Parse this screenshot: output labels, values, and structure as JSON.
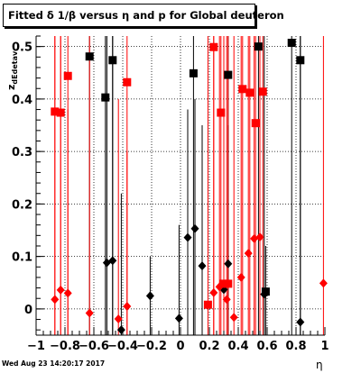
{
  "title": "Fitted δ 1/β versus η and p for Global deuteron",
  "footer_stamp": "Wed Aug 23 14:20:17 2017",
  "chart_data": {
    "type": "scatter",
    "xlabel": "η",
    "ylabel_main": "z",
    "ylabel_sub": "dEdetav",
    "xlim": [
      -1,
      1
    ],
    "ylim": [
      -0.05,
      0.52
    ],
    "x_ticks": [
      -1,
      -0.8,
      -0.6,
      -0.4,
      -0.2,
      0,
      0.2,
      0.4,
      0.6,
      0.8,
      1
    ],
    "x_tick_labels": [
      "−1",
      "−0.8",
      "−0.6",
      "−0.4",
      "−0.2",
      "0",
      "0.2",
      "0.4",
      "0.6",
      "0.8",
      "1"
    ],
    "y_ticks": [
      0,
      0.1,
      0.2,
      0.3,
      0.4,
      0.5
    ],
    "y_tick_labels": [
      "0",
      "0.1",
      "0.2",
      "0.3",
      "0.4",
      "0.5"
    ],
    "grid": true,
    "colors": {
      "black": "#000000",
      "red": "#ff0000"
    },
    "series": [
      {
        "color": "black",
        "marker": "diamond",
        "points": [
          {
            "x": -0.51,
            "y": 0.088,
            "lo": -0.05,
            "hi": 0.52
          },
          {
            "x": -0.47,
            "y": 0.092,
            "lo": -0.05,
            "hi": 0.52
          },
          {
            "x": -0.41,
            "y": -0.04,
            "lo": -0.05,
            "hi": 0.22
          },
          {
            "x": -0.21,
            "y": 0.025,
            "lo": -0.05,
            "hi": 0.1
          },
          {
            "x": -0.01,
            "y": -0.018,
            "lo": -0.05,
            "hi": 0.16
          },
          {
            "x": 0.05,
            "y": 0.136,
            "lo": -0.05,
            "hi": 0.38
          },
          {
            "x": 0.1,
            "y": 0.153,
            "lo": -0.05,
            "hi": 0.4
          },
          {
            "x": 0.15,
            "y": 0.082,
            "lo": -0.05,
            "hi": 0.35
          },
          {
            "x": 0.3,
            "y": 0.037,
            "lo": -0.05,
            "hi": 0.29
          },
          {
            "x": 0.33,
            "y": 0.086,
            "lo": -0.05,
            "hi": 0.35
          },
          {
            "x": 0.58,
            "y": 0.028,
            "lo": -0.05,
            "hi": 0.52
          },
          {
            "x": 0.83,
            "y": -0.025,
            "lo": -0.05,
            "hi": 0.52
          }
        ]
      },
      {
        "color": "black",
        "marker": "square",
        "points": [
          {
            "x": -0.63,
            "y": 0.481,
            "lo": -0.05,
            "hi": 0.52
          },
          {
            "x": -0.52,
            "y": 0.403,
            "lo": -0.05,
            "hi": 0.52
          },
          {
            "x": -0.47,
            "y": 0.474,
            "lo": -0.05,
            "hi": 0.52
          },
          {
            "x": 0.09,
            "y": 0.449,
            "lo": -0.05,
            "hi": 0.52
          },
          {
            "x": 0.33,
            "y": 0.446,
            "lo": -0.05,
            "hi": 0.52
          },
          {
            "x": 0.54,
            "y": 0.5,
            "lo": -0.05,
            "hi": 0.52
          },
          {
            "x": 0.59,
            "y": 0.033,
            "lo": -0.05,
            "hi": 0.12
          },
          {
            "x": 0.77,
            "y": 0.507,
            "lo": -0.05,
            "hi": 0.52
          },
          {
            "x": 0.83,
            "y": 0.474,
            "lo": -0.05,
            "hi": 0.52
          }
        ]
      },
      {
        "color": "red",
        "marker": "diamond",
        "points": [
          {
            "x": -0.87,
            "y": 0.018,
            "lo": -0.05,
            "hi": 0.52
          },
          {
            "x": -0.83,
            "y": 0.036,
            "lo": -0.05,
            "hi": 0.52
          },
          {
            "x": -0.78,
            "y": 0.03,
            "lo": -0.05,
            "hi": 0.38
          },
          {
            "x": -0.63,
            "y": -0.008,
            "lo": -0.05,
            "hi": 0.52
          },
          {
            "x": -0.43,
            "y": -0.019,
            "lo": -0.05,
            "hi": 0.4
          },
          {
            "x": -0.37,
            "y": 0.005,
            "lo": -0.05,
            "hi": 0.3
          },
          {
            "x": 0.23,
            "y": 0.031,
            "lo": -0.05,
            "hi": 0.52
          },
          {
            "x": 0.27,
            "y": 0.042,
            "lo": -0.05,
            "hi": 0.52
          },
          {
            "x": 0.32,
            "y": 0.018,
            "lo": -0.05,
            "hi": 0.52
          },
          {
            "x": 0.37,
            "y": -0.016,
            "lo": -0.05,
            "hi": 0.52
          },
          {
            "x": 0.42,
            "y": 0.06,
            "lo": -0.05,
            "hi": 0.52
          },
          {
            "x": 0.47,
            "y": 0.106,
            "lo": -0.05,
            "hi": 0.52
          },
          {
            "x": 0.51,
            "y": 0.134,
            "lo": -0.05,
            "hi": 0.52
          },
          {
            "x": 0.55,
            "y": 0.137,
            "lo": -0.05,
            "hi": 0.52
          },
          {
            "x": 0.99,
            "y": 0.049,
            "lo": -0.05,
            "hi": 0.52
          }
        ]
      },
      {
        "color": "red",
        "marker": "square",
        "points": [
          {
            "x": -0.87,
            "y": 0.376,
            "lo": -0.05,
            "hi": 0.52
          },
          {
            "x": -0.83,
            "y": 0.374,
            "lo": -0.05,
            "hi": 0.52
          },
          {
            "x": -0.78,
            "y": 0.444,
            "lo": -0.05,
            "hi": 0.52
          },
          {
            "x": -0.37,
            "y": 0.432,
            "lo": -0.05,
            "hi": 0.52
          },
          {
            "x": 0.19,
            "y": 0.008,
            "lo": -0.05,
            "hi": 0.52
          },
          {
            "x": 0.23,
            "y": 0.499,
            "lo": -0.05,
            "hi": 0.52
          },
          {
            "x": 0.28,
            "y": 0.374,
            "lo": -0.05,
            "hi": 0.52
          },
          {
            "x": 0.3,
            "y": 0.048,
            "lo": -0.05,
            "hi": 0.52
          },
          {
            "x": 0.33,
            "y": 0.048,
            "lo": -0.05,
            "hi": 0.52
          },
          {
            "x": 0.43,
            "y": 0.419,
            "lo": -0.05,
            "hi": 0.52
          },
          {
            "x": 0.48,
            "y": 0.412,
            "lo": -0.05,
            "hi": 0.52
          },
          {
            "x": 0.52,
            "y": 0.354,
            "lo": -0.05,
            "hi": 0.52
          },
          {
            "x": 0.57,
            "y": 0.414,
            "lo": -0.05,
            "hi": 0.52
          }
        ]
      }
    ]
  }
}
